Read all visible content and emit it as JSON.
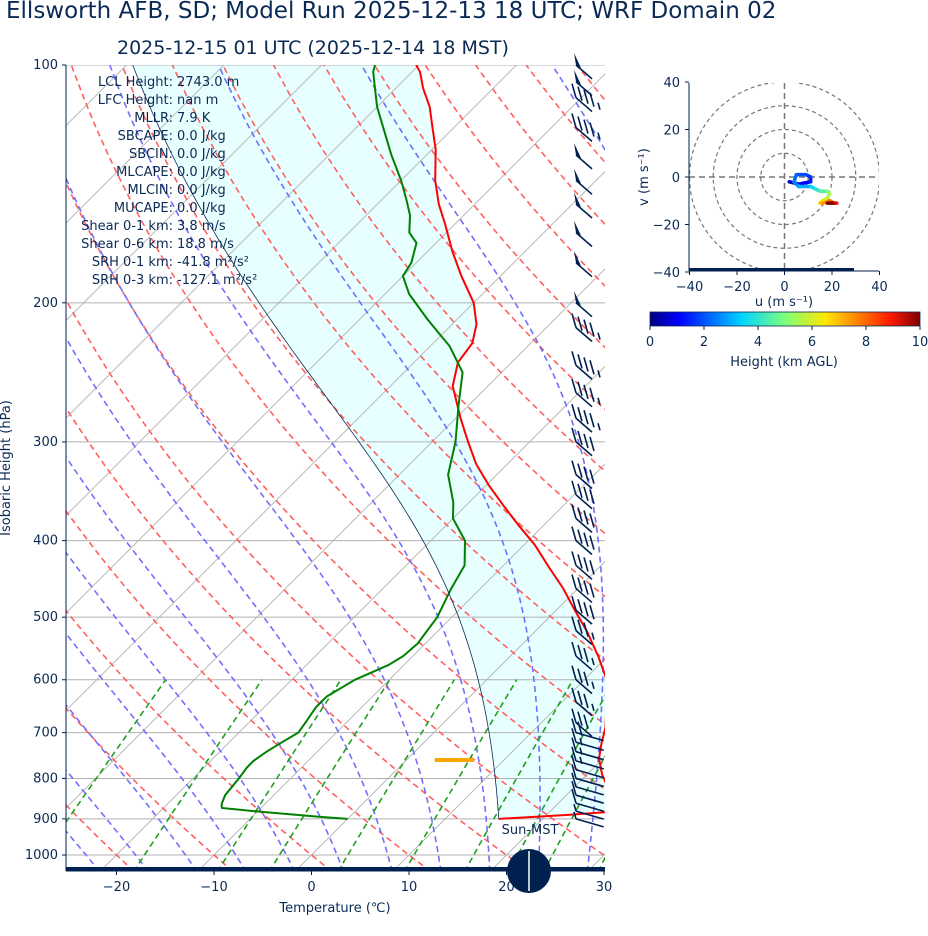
{
  "header": {
    "title": "Ellsworth AFB, SD; Model Run 2025-12-13 18 UTC; WRF Domain 02",
    "subtitle": "2025-12-15 01 UTC  (2025-12-14 18 MST)"
  },
  "skewt": {
    "ylabel": "Isobaric Height (hPa)",
    "xlabel": "Temperature (℃)",
    "pressure_ticks": [
      "100",
      "200",
      "300",
      "400",
      "500",
      "600",
      "700",
      "800",
      "900",
      "1000"
    ],
    "temp_ticks": [
      "−20",
      "−10",
      "0",
      "10",
      "20",
      "30"
    ],
    "sun_label": "Sun-MST",
    "stats": [
      {
        "k": "LCL Height",
        "v": "2743.0 m"
      },
      {
        "k": "LFC Height",
        "v": "nan m"
      },
      {
        "k": "MLLR",
        "v": "7.9 K"
      },
      {
        "k": "SBCAPE",
        "v": "0.0 J/kg"
      },
      {
        "k": "SBCIN",
        "v": "0.0 J/kg"
      },
      {
        "k": "MLCAPE",
        "v": "0.0 J/kg"
      },
      {
        "k": "MLCIN",
        "v": "0.0 J/kg"
      },
      {
        "k": "MUCAPE",
        "v": "0.0 J/kg"
      },
      {
        "k": "Shear 0-1 km",
        "v": "3.8 m/s"
      },
      {
        "k": "Shear 0-6 km",
        "v": "18.8 m/s"
      },
      {
        "k": "SRH 0-1 km",
        "v": "-41.8 m²/s²"
      },
      {
        "k": "SRH 0-3 km",
        "v": "-127.1 m²/s²"
      }
    ],
    "colors": {
      "temperature": "#ff0000",
      "dewpoint": "#008000",
      "parcel": "#0a2a55",
      "dry_adiabat": "#ff6060",
      "moist_adiabat": "#7070ff",
      "mixing_ratio": "#20a020",
      "cape_fill": "#e8ffff",
      "lcl_marker": "#ffa500",
      "frame": "#002050"
    }
  },
  "hodograph": {
    "xlabel": "u (m s⁻¹)",
    "ylabel": "v (m s⁻¹)",
    "ticks": [
      "−40",
      "−20",
      "0",
      "20",
      "40"
    ],
    "colorbar_label": "Height (km AGL)",
    "colorbar_ticks": [
      "0",
      "2",
      "4",
      "6",
      "8",
      "10"
    ]
  },
  "chart_data": [
    {
      "type": "line",
      "title": "",
      "xlabel": "Temperature (℃)",
      "ylabel": "Isobaric Height (hPa)",
      "xlim": [
        -25,
        30
      ],
      "ylim": [
        1030,
        100
      ],
      "y_scale": "log",
      "skew": true,
      "grid": true,
      "series": [
        {
          "name": "",
          "kind": "temperature",
          "points": [
            [
              15.5,
              900
            ],
            [
              22,
              890
            ],
            [
              27.4,
              880
            ],
            [
              26.9,
              870
            ],
            [
              24,
              830
            ],
            [
              21.5,
              790
            ],
            [
              19.6,
              755
            ],
            [
              18.2,
              720
            ],
            [
              17.1,
              690
            ],
            [
              16.1,
              670
            ],
            [
              14.3,
              635
            ],
            [
              12.3,
              600
            ],
            [
              9,
              560
            ],
            [
              5.2,
              520
            ],
            [
              1.9,
              490
            ],
            [
              -1.5,
              460
            ],
            [
              -5.2,
              432
            ],
            [
              -8.9,
              405
            ],
            [
              -12.5,
              383
            ],
            [
              -16,
              362
            ],
            [
              -19.8,
              340
            ],
            [
              -23.2,
              320
            ],
            [
              -26.3,
              300
            ],
            [
              -29.5,
              280
            ],
            [
              -33.6,
              255
            ],
            [
              -35.5,
              238
            ],
            [
              -36,
              225
            ],
            [
              -37.5,
              213
            ],
            [
              -40,
              200
            ],
            [
              -44,
              185
            ],
            [
              -47.5,
              172
            ],
            [
              -51,
              159
            ],
            [
              -53.7,
              150
            ],
            [
              -56.5,
              140
            ],
            [
              -59.6,
              128
            ],
            [
              -62.2,
              120
            ],
            [
              -64.6,
              113
            ],
            [
              -67.2,
              107
            ],
            [
              -69.2,
              102
            ],
            [
              -70.3,
              100
            ]
          ]
        },
        {
          "name": "",
          "kind": "dewpoint",
          "points": [
            [
              0,
              900
            ],
            [
              -3,
              895
            ],
            [
              -9,
              883
            ],
            [
              -14,
              872
            ],
            [
              -14.2,
              868
            ],
            [
              -14.5,
              860
            ],
            [
              -15,
              840
            ],
            [
              -15.3,
              800
            ],
            [
              -15.6,
              775
            ],
            [
              -15.6,
              760
            ],
            [
              -15.2,
              740
            ],
            [
              -14.6,
              720
            ],
            [
              -13.9,
              700
            ],
            [
              -14.2,
              680
            ],
            [
              -14.7,
              650
            ],
            [
              -14.7,
              630
            ],
            [
              -13.5,
              600
            ],
            [
              -11.6,
              575
            ],
            [
              -11,
              560
            ],
            [
              -10.8,
              540
            ],
            [
              -11.5,
              500
            ],
            [
              -13,
              460
            ],
            [
              -14,
              430
            ],
            [
              -16.5,
              400
            ],
            [
              -20,
              375
            ],
            [
              -21.6,
              358
            ],
            [
              -25,
              330
            ],
            [
              -27.6,
              300
            ],
            [
              -31,
              270
            ],
            [
              -34,
              245
            ],
            [
              -38,
              227
            ],
            [
              -43,
              210
            ],
            [
              -47.5,
              195
            ],
            [
              -50,
              185
            ],
            [
              -50.5,
              178
            ],
            [
              -52,
              168
            ],
            [
              -53.8,
              163
            ],
            [
              -55.5,
              155
            ],
            [
              -57.5,
              148
            ],
            [
              -60,
              140
            ],
            [
              -63.6,
              130
            ],
            [
              -66.5,
              122
            ],
            [
              -70,
              113
            ],
            [
              -72.5,
              106
            ],
            [
              -74,
              102
            ],
            [
              -74.5,
              100
            ]
          ]
        },
        {
          "name": "",
          "kind": "parcel",
          "points": [
            [
              15.5,
              900
            ],
            [
              11.4,
              860
            ],
            [
              6.8,
              815
            ],
            [
              3.6,
              785
            ],
            [
              0.8,
              760
            ],
            [
              -0.6,
              740
            ],
            [
              -2.8,
              720
            ],
            [
              -5.4,
              700
            ],
            [
              -8.3,
              680
            ],
            [
              -11.6,
              660
            ],
            [
              -15.7,
              635
            ],
            [
              -20,
              610
            ],
            [
              -25,
              585
            ],
            [
              -30,
              560
            ],
            [
              -35,
              538
            ],
            [
              -40,
              515
            ]
          ]
        }
      ],
      "lcl_marker": {
        "pressure": 730,
        "temp_range": [
          3,
          7
        ]
      },
      "wind_barbs": {
        "pressure": [
          100,
          105,
          110,
          120,
          130,
          140,
          150,
          163,
          178,
          200,
          215,
          240,
          260,
          280,
          300,
          330,
          350,
          375,
          400,
          430,
          460,
          490,
          520,
          560,
          600,
          640,
          680,
          700,
          720,
          740,
          760,
          780,
          800,
          820,
          840,
          860,
          880,
          900
        ],
        "speed_kt": [
          50,
          50,
          45,
          45,
          50,
          50,
          50,
          50,
          50,
          50,
          45,
          45,
          45,
          45,
          40,
          40,
          40,
          40,
          40,
          40,
          40,
          40,
          35,
          35,
          35,
          35,
          30,
          20,
          15,
          15,
          15,
          10,
          10,
          10,
          10,
          10,
          5,
          5
        ]
      }
    },
    {
      "type": "line",
      "title": "",
      "xlabel": "u (m s⁻¹)",
      "ylabel": "v (m s⁻¹)",
      "xlim": [
        -40,
        40
      ],
      "ylim": [
        -40,
        40
      ],
      "grid": true,
      "range_rings": [
        10,
        20,
        30,
        40
      ],
      "series": [
        {
          "name": "",
          "color_by": "height_km",
          "points": [
            [
              2,
              -2,
              0
            ],
            [
              6,
              -3,
              0.5
            ],
            [
              11,
              -2,
              1
            ],
            [
              11,
              0,
              1.3
            ],
            [
              9,
              1,
              1.6
            ],
            [
              5,
              1,
              1.9
            ],
            [
              4,
              -2,
              2.2
            ],
            [
              6,
              -4,
              2.5
            ],
            [
              11,
              -4,
              3
            ],
            [
              13,
              -5,
              3.5
            ],
            [
              15,
              -6,
              4
            ],
            [
              18,
              -6,
              4.5
            ],
            [
              19,
              -7,
              5
            ],
            [
              18,
              -9,
              5.5
            ],
            [
              16,
              -10,
              6
            ],
            [
              15,
              -11,
              6.5
            ],
            [
              16,
              -11,
              7
            ],
            [
              19,
              -10,
              7.5
            ],
            [
              21,
              -11,
              8
            ],
            [
              22,
              -11,
              8.5
            ],
            [
              21,
              -11,
              9
            ],
            [
              20,
              -11,
              9.5
            ],
            [
              18,
              -11,
              10
            ]
          ]
        }
      ]
    }
  ]
}
